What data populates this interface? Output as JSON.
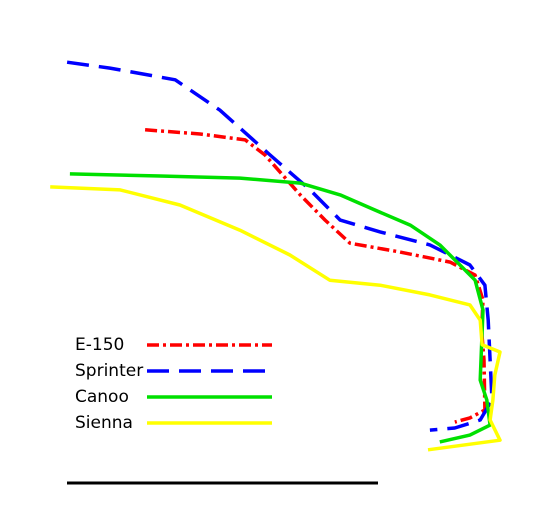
{
  "chart_data": {
    "type": "line",
    "xlim": [
      0,
      100
    ],
    "ylim": [
      0,
      100
    ],
    "legend": "lower left",
    "series": [
      {
        "name": "E-150",
        "color": "#ff0000",
        "dash": "dashdot",
        "x": [
          21.3,
          33.0,
          42.6,
          46.8,
          54.3,
          59.6,
          64.9,
          75.5,
          86.2,
          91.5,
          93.2,
          92.9,
          93.4,
          93.6,
          90.4,
          87.2
        ],
        "values": [
          81.0,
          80.0,
          78.6,
          75.0,
          65.5,
          59.5,
          54.0,
          51.9,
          49.5,
          46.4,
          40.5,
          33.3,
          26.2,
          14.3,
          12.4,
          11.4
        ]
      },
      {
        "name": "Sprinter",
        "color": "#0000ff",
        "dash": "dashed",
        "x": [
          4.7,
          13.8,
          27.7,
          37.2,
          47.9,
          56.4,
          62.8,
          71.3,
          81.9,
          90.4,
          93.6,
          94.3,
          94.7,
          95.1,
          92.6,
          87.2,
          81.9
        ],
        "values": [
          97.1,
          95.7,
          92.9,
          85.7,
          75.0,
          66.7,
          59.5,
          56.7,
          53.6,
          48.8,
          44.0,
          35.7,
          26.2,
          16.7,
          11.9,
          10.0,
          9.5
        ]
      },
      {
        "name": "Canoo",
        "color": "#00e000",
        "dash": "solid",
        "x": [
          5.3,
          24.5,
          41.5,
          54.3,
          62.8,
          70.2,
          77.7,
          84.0,
          88.3,
          91.5,
          93.2,
          92.9,
          92.6,
          94.0,
          94.7,
          90.4,
          84.0
        ],
        "values": [
          70.5,
          70.0,
          69.5,
          68.3,
          65.5,
          61.9,
          58.3,
          53.6,
          48.8,
          45.2,
          38.1,
          29.8,
          21.4,
          16.7,
          10.7,
          8.3,
          6.7
        ]
      },
      {
        "name": "Sienna",
        "color": "#ffff00",
        "dash": "solid",
        "x": [
          1.1,
          16.0,
          28.7,
          41.5,
          52.1,
          60.6,
          71.3,
          81.9,
          90.4,
          92.6,
          93.0,
          96.8,
          95.7,
          95.3,
          94.7,
          96.8,
          81.5
        ],
        "values": [
          67.4,
          66.7,
          63.1,
          57.1,
          51.2,
          45.2,
          44.0,
          41.7,
          39.3,
          35.7,
          29.8,
          28.1,
          22.6,
          16.7,
          11.9,
          7.1,
          4.8
        ]
      }
    ]
  }
}
